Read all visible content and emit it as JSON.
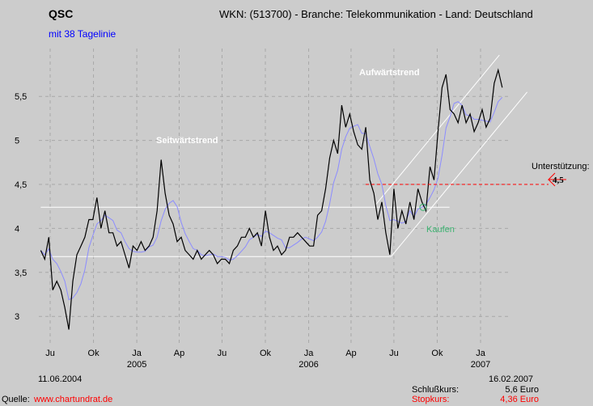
{
  "header": {
    "title": "QSC",
    "info": "WKN: (513700) - Branche: Telekommunikation - Land: Deutschland",
    "subtitle": "mit 38 Tagelinie"
  },
  "footer": {
    "start_date": "11.06.2004",
    "end_date": "16.02.2007",
    "close_label": "Schlußkurs:",
    "close_value": "5,6 Euro",
    "stop_label": "Stopkurs:",
    "stop_value": "4,36 Euro",
    "source_label": "Quelle:",
    "source_link": "www.chartundrat.de"
  },
  "colors": {
    "background": "#cccccc",
    "price": "#000000",
    "ma": "#8c8cff",
    "trendlines": "#ffffff",
    "support": "#ff0000",
    "buy": "#3cb371",
    "stop": "#ff0000"
  },
  "chart_data": {
    "type": "line",
    "title": "QSC",
    "x_start": "2004-06-11",
    "x_end": "2007-02-16",
    "ylim": [
      2.75,
      5.95
    ],
    "yticks": [
      {
        "v": 3,
        "label": "3"
      },
      {
        "v": 3.5,
        "label": "3,5"
      },
      {
        "v": 4,
        "label": "4"
      },
      {
        "v": 4.5,
        "label": "4,5"
      },
      {
        "v": 5,
        "label": "5"
      },
      {
        "v": 5.5,
        "label": "5,5"
      }
    ],
    "xticks": [
      {
        "d": "2004-07-01",
        "label": "Ju"
      },
      {
        "d": "2004-10-01",
        "label": "Ok"
      },
      {
        "d": "2005-01-01",
        "label": "Ja",
        "year": "2005"
      },
      {
        "d": "2005-04-01",
        "label": "Ap"
      },
      {
        "d": "2005-07-01",
        "label": "Ju"
      },
      {
        "d": "2005-10-01",
        "label": "Ok"
      },
      {
        "d": "2006-01-01",
        "label": "Ja",
        "year": "2006"
      },
      {
        "d": "2006-04-01",
        "label": "Ap"
      },
      {
        "d": "2006-07-01",
        "label": "Ju"
      },
      {
        "d": "2006-10-01",
        "label": "Ok"
      },
      {
        "d": "2007-01-01",
        "label": "Ja",
        "year": "2007"
      }
    ],
    "grid": true,
    "series": [
      {
        "name": "QSC",
        "values": [
          3.75,
          3.65,
          3.9,
          3.3,
          3.4,
          3.3,
          3.1,
          2.85,
          3.4,
          3.7,
          3.8,
          3.9,
          4.1,
          4.1,
          4.35,
          4.0,
          4.2,
          3.95,
          3.95,
          3.8,
          3.85,
          3.7,
          3.55,
          3.8,
          3.75,
          3.85,
          3.75,
          3.8,
          3.9,
          4.2,
          4.78,
          4.4,
          4.15,
          4.05,
          3.85,
          3.9,
          3.75,
          3.7,
          3.65,
          3.75,
          3.65,
          3.7,
          3.75,
          3.7,
          3.6,
          3.65,
          3.65,
          3.6,
          3.75,
          3.8,
          3.9,
          3.9,
          4.0,
          3.9,
          3.95,
          3.8,
          4.2,
          3.9,
          3.75,
          3.8,
          3.7,
          3.75,
          3.9,
          3.9,
          3.95,
          3.9,
          3.85,
          3.8,
          3.8,
          4.15,
          4.2,
          4.45,
          4.8,
          5.0,
          4.85,
          5.4,
          5.15,
          5.3,
          5.1,
          4.95,
          4.9,
          5.15,
          4.55,
          4.4,
          4.1,
          4.3,
          3.95,
          3.7,
          4.45,
          4.0,
          4.2,
          4.05,
          4.3,
          4.1,
          4.45,
          4.3,
          4.2,
          4.7,
          4.55,
          5.1,
          5.6,
          5.75,
          5.35,
          5.3,
          5.2,
          5.4,
          5.2,
          5.3,
          5.1,
          5.2,
          5.35,
          5.15,
          5.25,
          5.65,
          5.8,
          5.6
        ]
      },
      {
        "name": "mit 38 Tagelinie",
        "moving_average_days": 38
      }
    ],
    "annotations": {
      "sideways": "Seitwärtstrend",
      "uptrend": "Aufwärtstrend",
      "buy": "Kaufen",
      "support_label": "Unterstützung:",
      "support_value": "4,5",
      "support_level": 4.5,
      "lines": [
        {
          "from": [
            "2004-06-11",
            4.24
          ],
          "to": [
            "2006-10-27",
            4.24
          ]
        },
        {
          "from": [
            "2004-06-11",
            3.68
          ],
          "to": [
            "2006-06-25",
            3.68
          ]
        },
        {
          "from": [
            "2006-05-22",
            4.26
          ],
          "to": [
            "2007-02-10",
            5.97
          ]
        },
        {
          "from": [
            "2006-06-25",
            3.68
          ],
          "to": [
            "2007-04-10",
            5.55
          ]
        }
      ],
      "buy_point": [
        "2006-09-01",
        4.24
      ]
    }
  }
}
